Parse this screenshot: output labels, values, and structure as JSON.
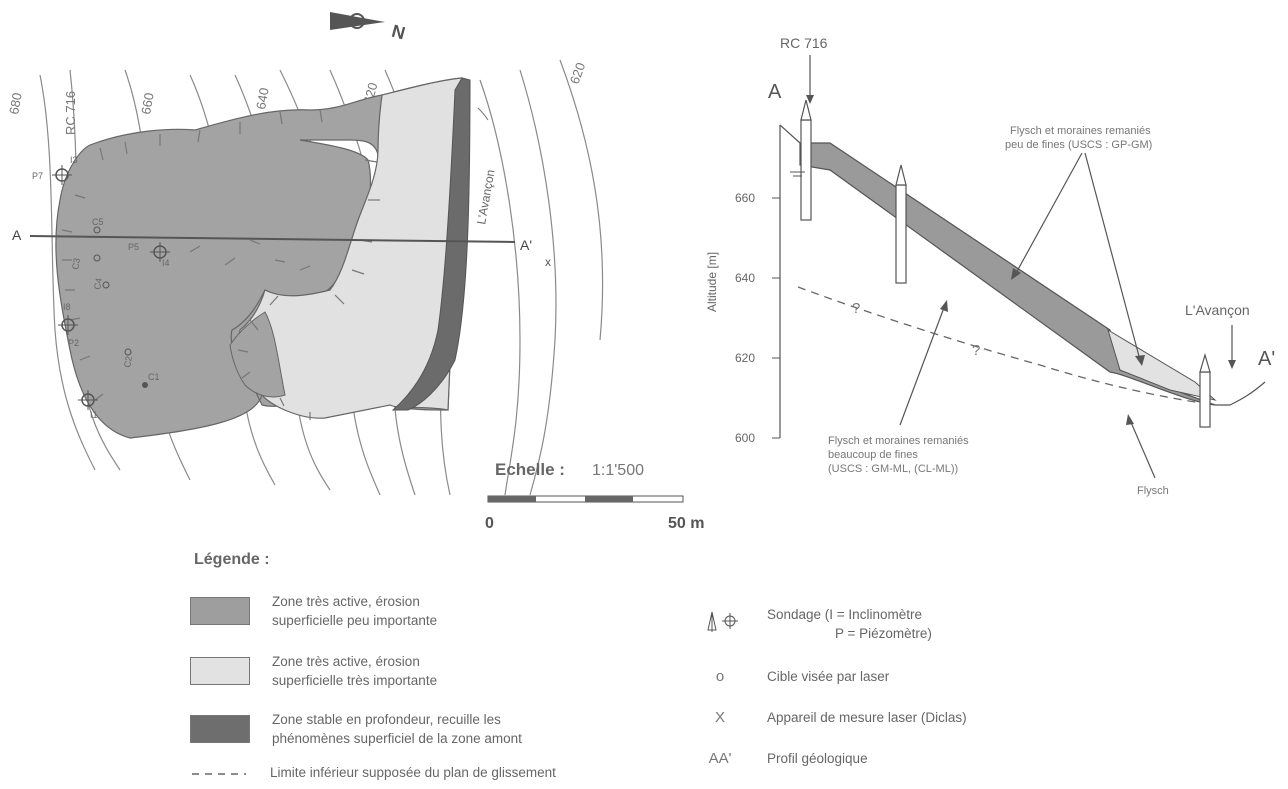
{
  "map": {
    "north_label": "N",
    "contours": [
      "680",
      "RC 716",
      "660",
      "640",
      "620",
      "620"
    ],
    "river": "L'Avançon",
    "section_start": "A",
    "section_end": "A'",
    "laser_device": "x",
    "probes": [
      "I3",
      "P7",
      "C5",
      "C3",
      "P5",
      "I4",
      "C4",
      "I8",
      "P2",
      "C2",
      "C1",
      "I1"
    ],
    "scale_label": "Echelle :",
    "scale_value": "1:1'500",
    "scale_min": "0",
    "scale_max": "50 m"
  },
  "profile": {
    "road": "RC 716",
    "start": "A",
    "end": "A'",
    "river": "L'Avançon",
    "ylabel": "Altitude [m]",
    "yticks": [
      "660",
      "640",
      "620",
      "600"
    ],
    "label_top": [
      "Flysch et moraines remaniés",
      "peu de fines (USCS : GP-GM)"
    ],
    "label_bottom": [
      "Flysch et moraines remaniés",
      "beaucoup de fines",
      "(USCS : GM-ML, (CL-ML))"
    ],
    "label_flysch": "Flysch",
    "q1": "?",
    "q2": "?"
  },
  "legend": {
    "title": "Légende :",
    "items": [
      {
        "line1": "Zone très active, érosion",
        "line2": "superficielle peu importante",
        "color": "#9e9e9e"
      },
      {
        "line1": "Zone très active, érosion",
        "line2": "superficielle très importante",
        "color": "#e2e2e2"
      },
      {
        "line1": "Zone stable en profondeur, recuille les",
        "line2": "phénomènes superficiel de la zone amont",
        "color": "#6e6e6e"
      },
      {
        "line1": "Limite inférieur supposée du plan de glissement",
        "line2": ""
      }
    ],
    "symbols": [
      {
        "symbol": "",
        "line1": "Sondage (I = Inclinomètre",
        "line2": "P = Piézomètre)"
      },
      {
        "symbol": "o",
        "line1": "Cible visée par laser",
        "line2": ""
      },
      {
        "symbol": "X",
        "line1": "Appareil de mesure laser (Diclas)",
        "line2": ""
      },
      {
        "symbol": "AA'",
        "line1": "Profil géologique",
        "line2": ""
      }
    ]
  }
}
